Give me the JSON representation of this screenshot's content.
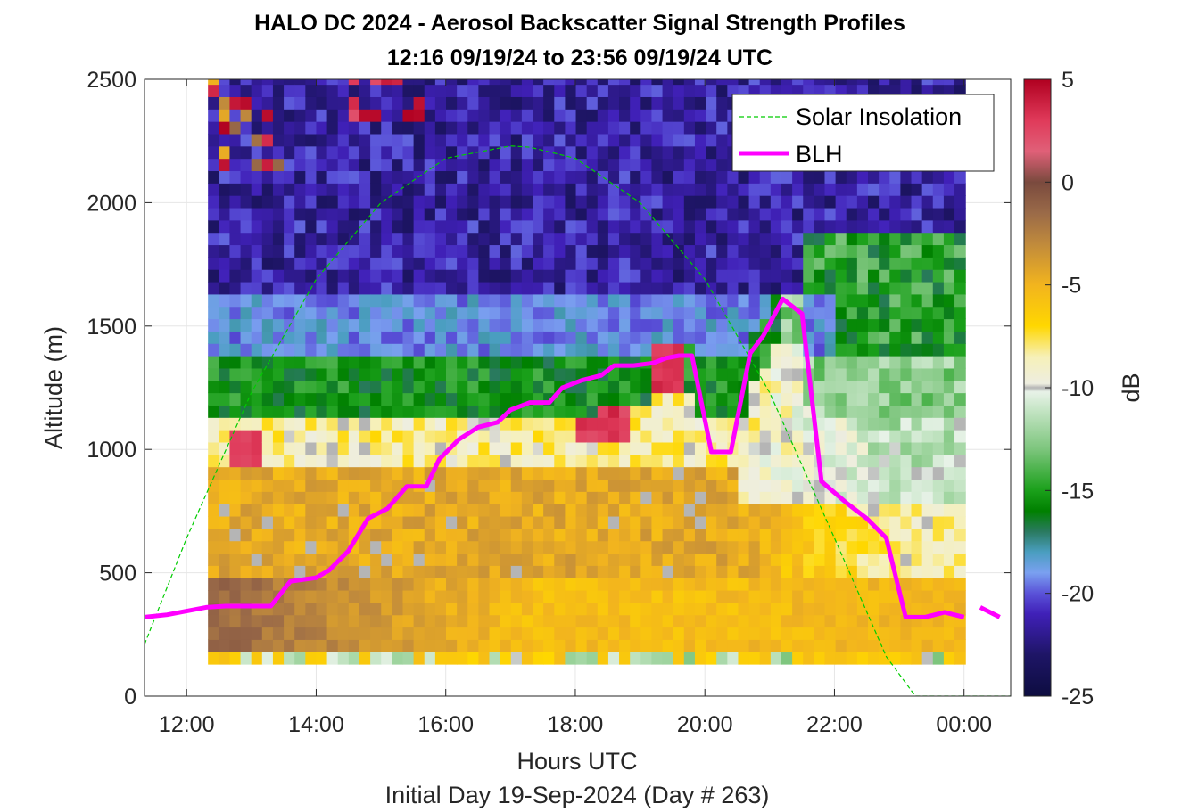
{
  "chart_data": {
    "type": "heatmap",
    "title": "HALO DC 2024 - Aerosol Backscatter Signal Strength Profiles",
    "subtitle": "12:16 09/19/24 to 23:56 09/19/24  UTC",
    "xlabel": "Hours UTC",
    "footer": "Initial Day 19-Sep-2024 (Day # 263)",
    "ylabel": "Altitude (m)",
    "colorbar_label": "dB",
    "xlim_hours": [
      11.35,
      24.72
    ],
    "ylim": [
      0,
      2500
    ],
    "x_ticks": [
      {
        "h": 12,
        "label": "12:00"
      },
      {
        "h": 14,
        "label": "14:00"
      },
      {
        "h": 16,
        "label": "16:00"
      },
      {
        "h": 18,
        "label": "18:00"
      },
      {
        "h": 20,
        "label": "20:00"
      },
      {
        "h": 22,
        "label": "22:00"
      },
      {
        "h": 24,
        "label": "00:00"
      }
    ],
    "y_ticks": [
      {
        "v": 0,
        "label": "0"
      },
      {
        "v": 500,
        "label": "500"
      },
      {
        "v": 1000,
        "label": "1000"
      },
      {
        "v": 1500,
        "label": "1500"
      },
      {
        "v": 2000,
        "label": "2000"
      },
      {
        "v": 2500,
        "label": "2500"
      }
    ],
    "colorbar_ticks": [
      {
        "v": 5,
        "label": "5"
      },
      {
        "v": 0,
        "label": "0"
      },
      {
        "v": -5,
        "label": "-5"
      },
      {
        "v": -10,
        "label": "-10"
      },
      {
        "v": -15,
        "label": "-15"
      },
      {
        "v": -20,
        "label": "-20"
      },
      {
        "v": -25,
        "label": "-25"
      }
    ],
    "colorbar_range": [
      -25,
      5
    ],
    "grid": true,
    "legend_position": "top-right",
    "series": [
      {
        "name": "Solar Insolation",
        "style": "dashed",
        "color": "#00cc00",
        "x_hours": [
          11.35,
          12.0,
          13.0,
          14.0,
          15.0,
          16.0,
          17.0,
          17.3,
          18.0,
          19.0,
          20.0,
          21.0,
          22.0,
          22.8,
          23.25,
          24.72
        ],
        "y": [
          210,
          640,
          1230,
          1690,
          2000,
          2180,
          2230,
          2225,
          2180,
          2000,
          1690,
          1230,
          640,
          160,
          0,
          0
        ]
      },
      {
        "name": "BLH",
        "style": "solid",
        "color": "#ff00ff",
        "x_hours": [
          11.35,
          11.7,
          12.3,
          12.6,
          13.0,
          13.3,
          13.6,
          14.0,
          14.2,
          14.5,
          14.8,
          15.1,
          15.4,
          15.7,
          15.9,
          16.2,
          16.5,
          16.8,
          17.0,
          17.3,
          17.6,
          17.8,
          18.1,
          18.4,
          18.6,
          18.9,
          19.2,
          19.4,
          19.6,
          19.8,
          20.1,
          20.4,
          20.7,
          20.9,
          21.2,
          21.5,
          21.8,
          22.2,
          22.5,
          22.8,
          23.1,
          23.4,
          23.7,
          24.0
        ],
        "y": [
          320,
          330,
          360,
          365,
          365,
          365,
          465,
          480,
          510,
          590,
          720,
          760,
          850,
          850,
          960,
          1040,
          1090,
          1110,
          1160,
          1190,
          1190,
          1250,
          1280,
          1300,
          1340,
          1340,
          1350,
          1370,
          1380,
          1380,
          990,
          990,
          1390,
          1460,
          1610,
          1550,
          870,
          780,
          720,
          640,
          320,
          320,
          340,
          320
        ],
        "gaps_after_hours": [
          24.0
        ]
      }
    ],
    "colormap": [
      {
        "v": -25,
        "c": "#0d0d40"
      },
      {
        "v": -23,
        "c": "#1e1566"
      },
      {
        "v": -21,
        "c": "#4020b8"
      },
      {
        "v": -20,
        "c": "#5a52d8"
      },
      {
        "v": -19,
        "c": "#7aa0f0"
      },
      {
        "v": -18,
        "c": "#4a9ec0"
      },
      {
        "v": -17,
        "c": "#2a7a60"
      },
      {
        "v": -16,
        "c": "#008000"
      },
      {
        "v": -15,
        "c": "#1aa01a"
      },
      {
        "v": -13,
        "c": "#7cc57c"
      },
      {
        "v": -11,
        "c": "#c8e6c8"
      },
      {
        "v": -10.2,
        "c": "#e8f2e8"
      },
      {
        "v": -10,
        "c": "#b5b5b5"
      },
      {
        "v": -9.8,
        "c": "#eeeee0"
      },
      {
        "v": -8.5,
        "c": "#f6f0b8"
      },
      {
        "v": -7,
        "c": "#ffd700"
      },
      {
        "v": -5,
        "c": "#f2b41e"
      },
      {
        "v": -3,
        "c": "#c08a3c"
      },
      {
        "v": -1.5,
        "c": "#9a6a48"
      },
      {
        "v": 0,
        "c": "#7a4a3e"
      },
      {
        "v": 1.5,
        "c": "#e06078"
      },
      {
        "v": 3,
        "c": "#e03a5a"
      },
      {
        "v": 5,
        "c": "#b00020"
      }
    ],
    "heatmap": {
      "x_start_hours": 12.33,
      "x_step_hours": 0.167,
      "n_columns": 70,
      "altitude_bins_m": [
        130,
        180,
        230,
        280,
        330,
        380,
        430,
        480,
        530,
        580,
        630,
        680,
        730,
        780,
        830,
        880,
        930,
        980,
        1030,
        1080,
        1130,
        1180,
        1230,
        1280,
        1330,
        1380,
        1430,
        1480,
        1530,
        1580,
        1630,
        1680,
        1730,
        1780,
        1830,
        1880,
        1930,
        1980,
        2030,
        2080,
        2130,
        2180,
        2230,
        2280,
        2330,
        2380,
        2430,
        2480,
        2530
      ],
      "layer_profile": "lowest bin mixed green/yellow; 150-450 m brown (-3 to -1 dB) early, gold later; 450-950 m yellow-gold; 950-1150 m pale/white with gray and red patches; 1150-1400 m green band; 1400-1600 m light blue/cyan; above ~1600 m violet to navy (-20 to -24 dB); scattered red/pink cells near top-left and near 19:40 at 1200-1700 m; late-day column 21:00-24:00 white-green above 1000 m"
    }
  }
}
